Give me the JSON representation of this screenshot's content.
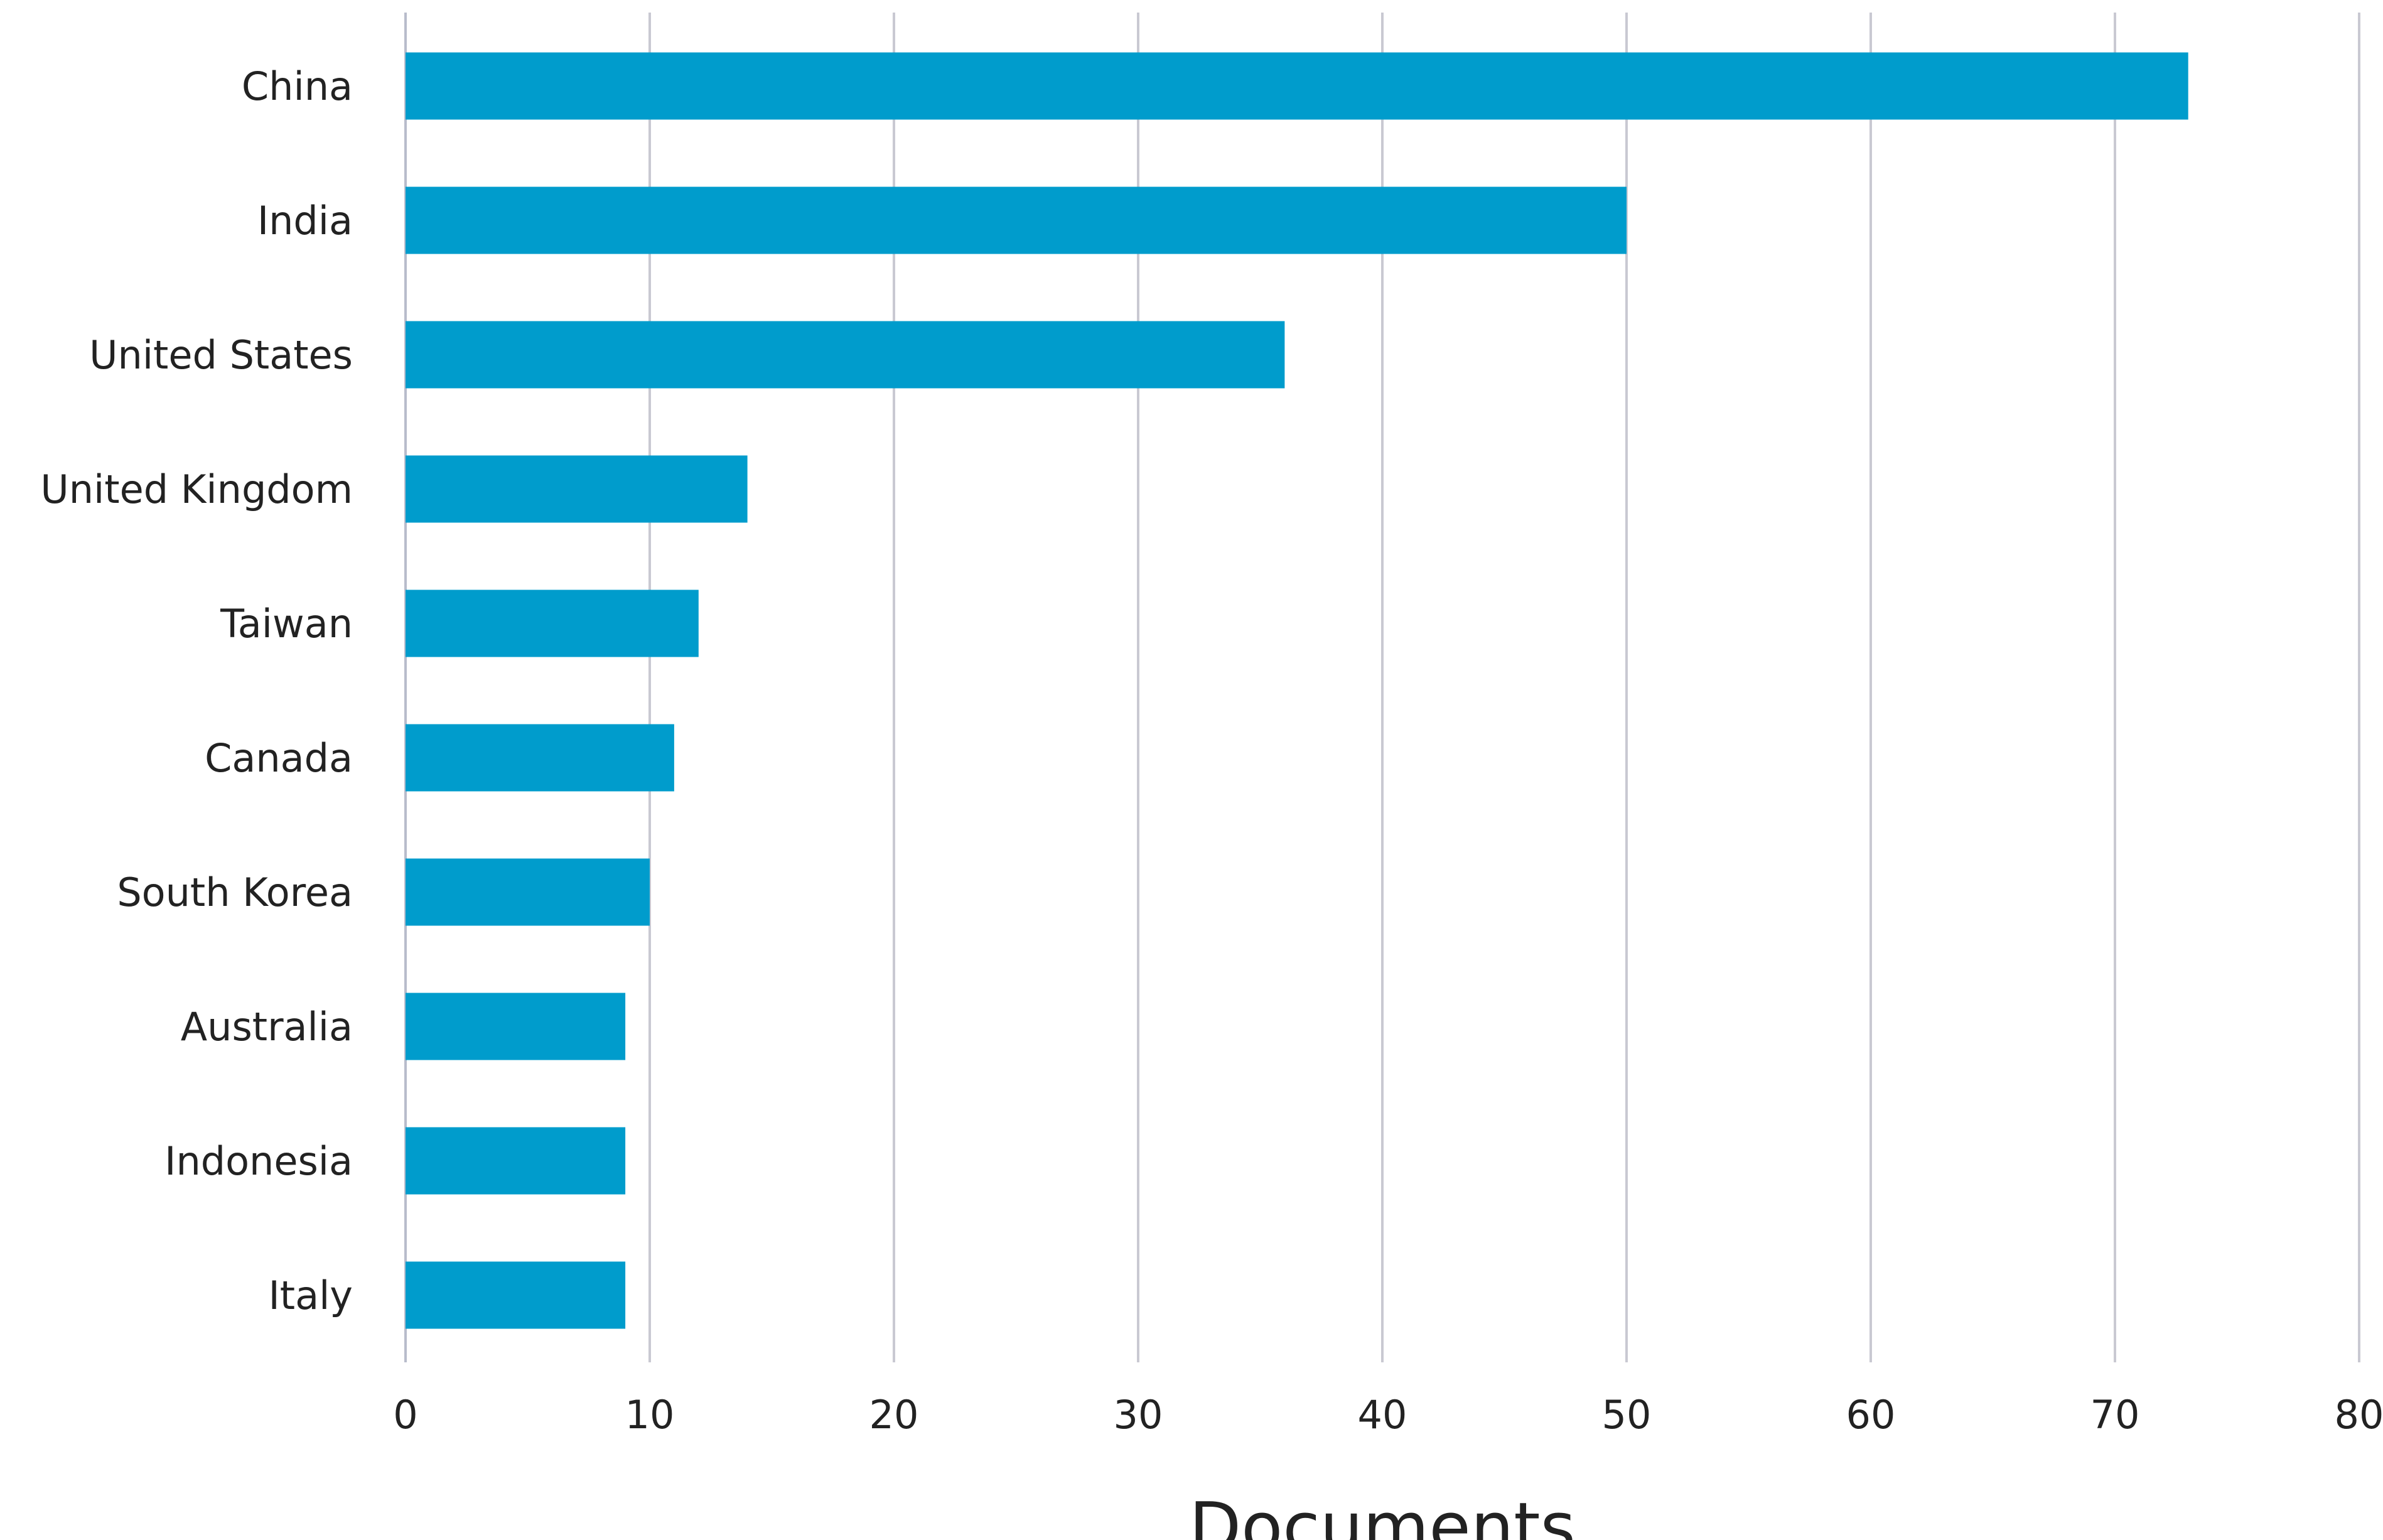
{
  "chart_data": {
    "type": "bar",
    "orientation": "horizontal",
    "categories": [
      "China",
      "India",
      "United States",
      "United Kingdom",
      "Taiwan",
      "Canada",
      "South Korea",
      "Australia",
      "Indonesia",
      "Italy"
    ],
    "values": [
      73,
      50,
      36,
      14,
      12,
      11,
      10,
      9,
      9,
      9
    ],
    "xlabel": "Documents",
    "ylabel": "",
    "xlim": [
      0,
      80
    ],
    "xticks": [
      "0",
      "10",
      "20",
      "30",
      "40",
      "50",
      "60",
      "70",
      "80"
    ],
    "grid": "vertical",
    "legend": "none",
    "bar_color": "#009ccc"
  }
}
